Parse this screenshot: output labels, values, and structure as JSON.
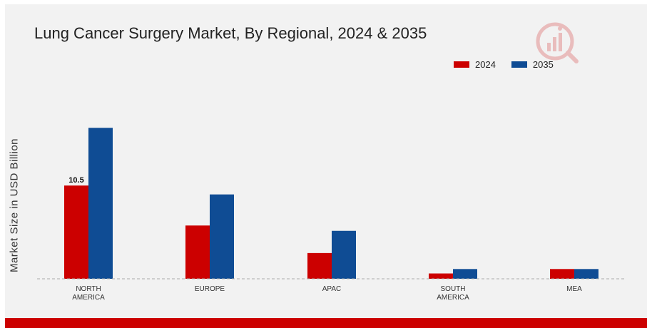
{
  "chart_data": {
    "type": "bar",
    "title": "Lung Cancer Surgery Market, By Regional, 2024 & 2035",
    "xlabel": "",
    "ylabel": "Market Size in USD Billion",
    "categories": [
      [
        "NORTH",
        "AMERICA"
      ],
      [
        "EUROPE"
      ],
      [
        "APAC"
      ],
      [
        "SOUTH",
        "AMERICA"
      ],
      [
        "MEA"
      ]
    ],
    "series": [
      {
        "name": "2024",
        "color": "#cc0000",
        "values": [
          10.5,
          6.0,
          2.9,
          0.6,
          1.1
        ]
      },
      {
        "name": "2035",
        "color": "#0f4c94",
        "values": [
          17.0,
          9.5,
          5.4,
          1.1,
          1.1
        ]
      }
    ],
    "data_labels": [
      {
        "series": 0,
        "index": 0,
        "text": "10.5"
      }
    ],
    "ylim": [
      0,
      22
    ],
    "grid": false,
    "baseline": "dashed",
    "legend_position": "top-right"
  },
  "colors": {
    "accent": "#cc0000",
    "secondary": "#0f4c94",
    "background": "#f2f2f2"
  },
  "logo": {
    "icon": "market-research-logo-icon"
  }
}
